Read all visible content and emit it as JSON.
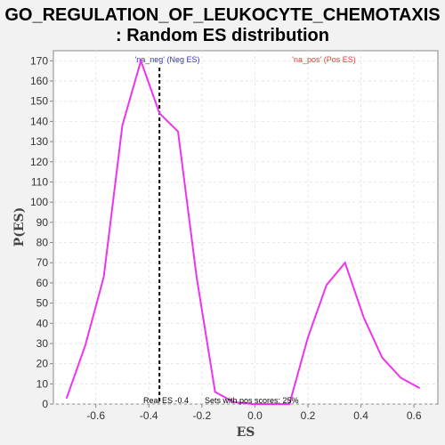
{
  "chart_data": {
    "type": "line",
    "title_line1": "GO_REGULATION_OF_LEUKOCYTE_CHEMOTAXIS",
    "title_line2": ": Random ES distribution",
    "xlabel": "ES",
    "ylabel": "P(ES)",
    "xlim": [
      -0.76,
      0.69
    ],
    "ylim": [
      0,
      175
    ],
    "xticks": [
      "-0.6",
      "-0.4",
      "-0.2",
      "0.0",
      "0.2",
      "0.4",
      "0.6"
    ],
    "xtick_values": [
      -0.6,
      -0.4,
      -0.2,
      0.0,
      0.2,
      0.4,
      0.6
    ],
    "yticks": [
      "0",
      "10",
      "20",
      "30",
      "40",
      "50",
      "60",
      "70",
      "80",
      "90",
      "100",
      "110",
      "120",
      "130",
      "140",
      "150",
      "160",
      "170"
    ],
    "ytick_values": [
      0,
      10,
      20,
      30,
      40,
      50,
      60,
      70,
      80,
      90,
      100,
      110,
      120,
      130,
      140,
      150,
      160,
      170
    ],
    "grid": true,
    "series": [
      {
        "color": "#ee33ee",
        "x": [
          -0.71,
          -0.64,
          -0.57,
          -0.5,
          -0.43,
          -0.36,
          -0.29,
          -0.22,
          -0.15,
          -0.08,
          -0.01,
          0.06,
          0.13,
          0.2,
          0.27,
          0.34,
          0.41,
          0.48,
          0.55,
          0.62
        ],
        "y": [
          3,
          29,
          63,
          138,
          170,
          144,
          135,
          63,
          6,
          1,
          0,
          0,
          0,
          33,
          59,
          70,
          43,
          23,
          13,
          8
        ]
      }
    ],
    "real_es": -0.36,
    "annotations": {
      "neg_label": "'na_neg' (Neg ES)",
      "neg_color": "#3333cc",
      "pos_label": "'na_pos' (Pos ES)",
      "pos_color": "#ee3333",
      "real_es_label": "Real ES -0.4",
      "pos_scores_label": "Sets with pos scores: 25%"
    }
  }
}
